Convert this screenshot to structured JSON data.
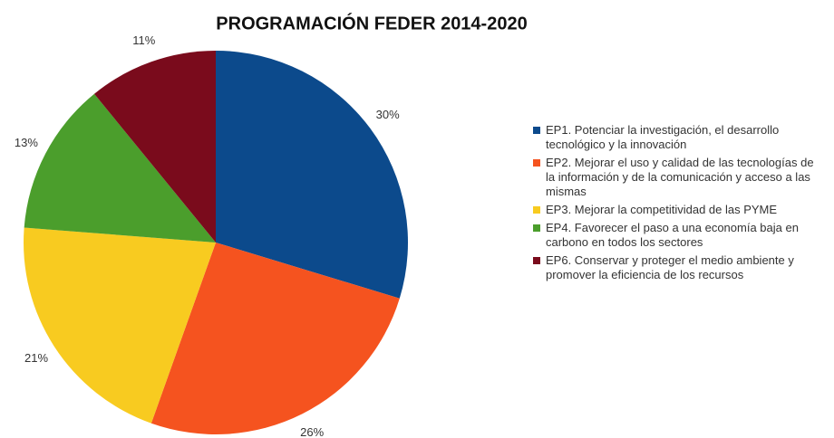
{
  "chart_data": {
    "type": "pie",
    "title": "PROGRAMACIÓN FEDER 2014-2020",
    "series": [
      {
        "name": "EP1. Potenciar la investigación, el desarrollo tecnológico y la innovación",
        "color": "#0c4a8c"
      },
      {
        "name": "EP2. Mejorar el uso y calidad de las tecnologías de la información y de la comunicación y acceso a las mismas",
        "color": "#f5531f"
      },
      {
        "name": "EP3. Mejorar la competitividad de las PYME",
        "color": "#f8cb20"
      },
      {
        "name": "EP4. Favorecer el paso a una economía baja en carbono en todos los sectores",
        "color": "#4b9e2c"
      },
      {
        "name": "EP6. Conservar y proteger el medio ambiente y promover la eficiencia de los recursos",
        "color": "#7a0b1c"
      }
    ],
    "values": [
      30,
      26,
      21,
      13,
      11
    ],
    "value_labels": [
      "30%",
      "26%",
      "21%",
      "13%",
      "11%"
    ]
  }
}
